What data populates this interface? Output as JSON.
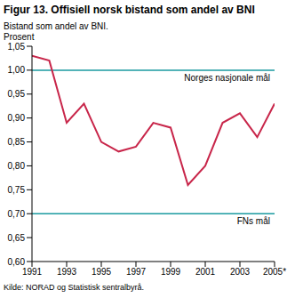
{
  "chart_data": {
    "type": "line",
    "title": "Figur 13. Offisiell norsk bistand som andel av BNI",
    "subtitle": "Bistand som andel av BNI.",
    "y_label": "Prosent",
    "source": "Kilde: NORAD og Statistisk sentralbyrå.",
    "x": [
      1991,
      1992,
      1993,
      1994,
      1995,
      1996,
      1997,
      1998,
      1999,
      2000,
      2001,
      2002,
      2003,
      2004,
      2005
    ],
    "values": [
      1.03,
      1.02,
      0.89,
      0.93,
      0.85,
      0.83,
      0.84,
      0.89,
      0.88,
      0.76,
      0.8,
      0.89,
      0.91,
      0.86,
      0.93
    ],
    "color": "#c8264a",
    "xlim": [
      1991,
      2005
    ],
    "xticks": [
      1991,
      1993,
      1995,
      1997,
      1999,
      2001,
      2003,
      {
        "value": 2005,
        "label": "2005*"
      }
    ],
    "ylim": [
      0.6,
      1.05
    ],
    "yticks": [
      {
        "value": 0.6,
        "label": "0,60"
      },
      {
        "value": 0.65,
        "label": "0,65"
      },
      {
        "value": 0.7,
        "label": "0,70"
      },
      {
        "value": 0.75,
        "label": "0,75"
      },
      {
        "value": 0.8,
        "label": "0,80"
      },
      {
        "value": 0.85,
        "label": "0,85"
      },
      {
        "value": 0.9,
        "label": "0,90"
      },
      {
        "value": 0.95,
        "label": "0,95"
      },
      {
        "value": 1.0,
        "label": "1,00"
      },
      {
        "value": 1.05,
        "label": "1,05"
      }
    ],
    "reference_lines": [
      {
        "value": 1.0,
        "label": "Norges nasjonale mål",
        "color": "#1a9aa0"
      },
      {
        "value": 0.7,
        "label": "FNs mål",
        "color": "#1a9aa0"
      }
    ],
    "grid": false
  }
}
